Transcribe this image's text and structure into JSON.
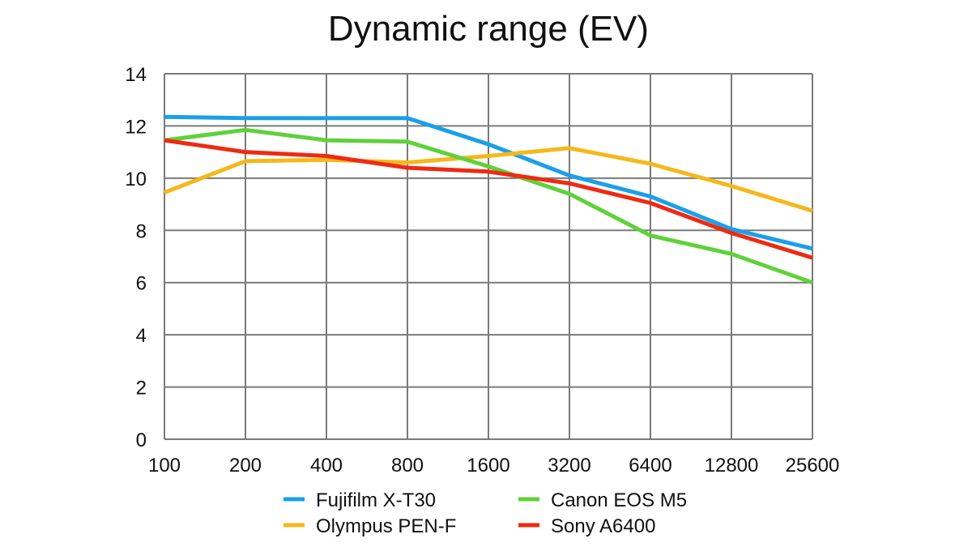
{
  "chart_data": {
    "type": "line",
    "title": "Dynamic range (EV)",
    "xlabel": "",
    "ylabel": "",
    "categories": [
      "100",
      "200",
      "400",
      "800",
      "1600",
      "3200",
      "6400",
      "12800",
      "25600"
    ],
    "yticks": [
      "0",
      "2",
      "4",
      "6",
      "8",
      "10",
      "12",
      "14"
    ],
    "ylim": [
      0,
      14
    ],
    "grid": true,
    "legend_position": "bottom",
    "series": [
      {
        "name": "Fujifilm X-T30",
        "color": "#1aa0ea",
        "values": [
          12.35,
          12.3,
          12.3,
          12.3,
          11.3,
          10.1,
          9.3,
          8.05,
          7.3
        ]
      },
      {
        "name": "Olympus PEN-F",
        "color": "#f5b81b",
        "values": [
          9.45,
          10.65,
          10.7,
          10.6,
          10.85,
          11.15,
          10.55,
          9.7,
          8.75
        ]
      },
      {
        "name": "Canon EOS M5",
        "color": "#5fd13a",
        "values": [
          11.45,
          11.85,
          11.45,
          11.4,
          10.45,
          9.4,
          7.8,
          7.1,
          6.0
        ]
      },
      {
        "name": "Sony A6400",
        "color": "#ee2a12",
        "values": [
          11.45,
          11.0,
          10.85,
          10.4,
          10.25,
          9.8,
          9.05,
          7.9,
          6.95
        ]
      }
    ]
  }
}
